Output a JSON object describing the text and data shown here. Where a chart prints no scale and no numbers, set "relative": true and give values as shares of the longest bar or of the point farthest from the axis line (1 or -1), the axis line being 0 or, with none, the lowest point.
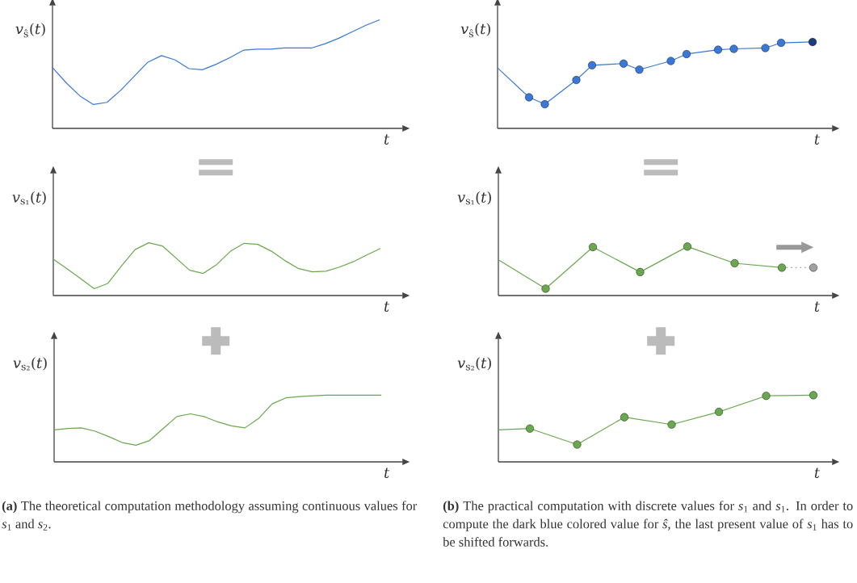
{
  "chart_data": [
    {
      "type": "line",
      "relative": true,
      "ylabel": "*v*$_{ŝ}$(*t*)",
      "xlabel": "*t*",
      "categories": [
        null,
        null,
        null,
        null,
        null,
        null,
        null,
        null,
        null,
        null,
        null,
        null,
        null,
        null,
        null,
        null,
        null,
        null,
        null,
        null,
        null,
        null,
        null,
        null,
        null
      ],
      "series": [
        {
          "color": "#3a78d8",
          "values": [
            0.56,
            0.42,
            0.3,
            0.22,
            0.24,
            0.35,
            0.48,
            0.61,
            0.67,
            0.63,
            0.55,
            0.54,
            0.59,
            0.65,
            0.72,
            0.73,
            0.73,
            0.74,
            0.74,
            0.74,
            0.78,
            0.83,
            0.89,
            0.95,
            1
          ]
        }
      ]
    },
    {
      "type": "line",
      "relative": true,
      "ylabel": "*v*$_{ŝ}$(*t*)",
      "xlabel": "*t*",
      "categories": [
        null,
        null,
        null,
        null,
        null,
        null,
        null,
        null,
        null,
        null,
        null,
        null,
        null,
        null,
        null,
        null,
        null,
        null,
        null,
        null,
        null
      ],
      "series": [
        {
          "color": "#3a78d8",
          "marker": "circle",
          "values": [
            0.7,
            null,
            0.36,
            0.28,
            null,
            0.56,
            0.73,
            null,
            0.75,
            0.68,
            null,
            0.78,
            0.86,
            null,
            0.91,
            0.92,
            null,
            0.93,
            0.99,
            null,
            1
          ],
          "colors": [
            null,
            null,
            "#3a78d8",
            "#3a78d8",
            null,
            "#3a78d8",
            "#3a78d8",
            null,
            "#3a78d8",
            "#3a78d8",
            null,
            "#3a78d8",
            "#3a78d8",
            null,
            "#3a78d8",
            "#3a78d8",
            null,
            "#3a78d8",
            "#3a78d8",
            null,
            "#1a3e7a"
          ]
        }
      ]
    },
    {
      "type": "line",
      "relative": true,
      "ylabel": "*v*$_{s₁}$(*t*)",
      "xlabel": "*t*",
      "categories": [
        null,
        null,
        null,
        null,
        null,
        null,
        null,
        null,
        null,
        null,
        null,
        null,
        null,
        null,
        null,
        null,
        null,
        null,
        null,
        null,
        null,
        null,
        null,
        null,
        null
      ],
      "series": [
        {
          "color": "#6aa84f",
          "values": [
            0.69,
            0.51,
            0.32,
            0.13,
            0.23,
            0.56,
            0.87,
            1,
            0.94,
            0.71,
            0.48,
            0.42,
            0.59,
            0.84,
            0.99,
            0.97,
            0.84,
            0.66,
            0.51,
            0.45,
            0.46,
            0.54,
            0.64,
            0.77,
            0.89
          ]
        }
      ]
    },
    {
      "type": "line",
      "relative": true,
      "ylabel": "*v*$_{s₁}$(*t*)",
      "xlabel": "*t*",
      "categories": [
        null,
        null,
        null,
        null,
        null,
        null,
        null,
        null,
        null,
        null,
        null,
        null,
        null,
        null,
        null,
        null,
        null,
        null,
        null,
        null,
        null
      ],
      "series": [
        {
          "color": "#a0a0a0",
          "line_style": "dotted",
          "marker": "circle",
          "values": [
            null,
            null,
            null,
            null,
            null,
            null,
            null,
            null,
            null,
            null,
            null,
            null,
            null,
            null,
            null,
            null,
            null,
            null,
            0.57,
            null,
            0.57
          ],
          "colors": [
            null,
            null,
            null,
            null,
            null,
            null,
            null,
            null,
            null,
            null,
            null,
            null,
            null,
            null,
            null,
            null,
            null,
            null,
            null,
            null,
            "#a0a0a0"
          ]
        },
        {
          "color": "#6aa84f",
          "marker": "circle",
          "values": [
            0.73,
            null,
            null,
            0.14,
            null,
            null,
            0.99,
            null,
            null,
            0.48,
            null,
            null,
            1,
            null,
            null,
            0.66,
            null,
            null,
            0.57,
            null,
            null
          ],
          "colors": [
            null,
            null,
            null,
            "#6aa84f",
            null,
            null,
            "#6aa84f",
            null,
            null,
            "#6aa84f",
            null,
            null,
            "#6aa84f",
            null,
            null,
            "#6aa84f",
            null,
            null,
            "#6aa84f",
            null,
            null
          ]
        }
      ]
    },
    {
      "type": "line",
      "relative": true,
      "ylabel": "*v*$_{s₂}$(*t*)",
      "xlabel": "*t*",
      "categories": [
        null,
        null,
        null,
        null,
        null,
        null,
        null,
        null,
        null,
        null,
        null,
        null,
        null,
        null,
        null,
        null,
        null,
        null,
        null,
        null,
        null,
        null,
        null,
        null,
        null
      ],
      "series": [
        {
          "color": "#6aa84f",
          "values": [
            0.48,
            0.5,
            0.51,
            0.46,
            0.38,
            0.29,
            0.25,
            0.32,
            0.5,
            0.68,
            0.72,
            0.68,
            0.6,
            0.54,
            0.51,
            0.65,
            0.87,
            0.96,
            0.98,
            0.99,
            1,
            1,
            1,
            1,
            1
          ]
        }
      ],
      "annotations": [
        "**(a)** The theoretical computation methodology assuming continuous values for *s*$_{1}$ and *s*$_{2}$."
      ]
    },
    {
      "type": "line",
      "relative": true,
      "ylabel": "*v*$_{s₂}$(*t*)",
      "xlabel": "*t*",
      "categories": [
        null,
        null,
        null,
        null,
        null,
        null,
        null,
        null,
        null,
        null,
        null,
        null,
        null,
        null,
        null,
        null,
        null,
        null,
        null,
        null,
        null
      ],
      "series": [
        {
          "color": "#6aa84f",
          "marker": "circle",
          "values": [
            0.48,
            null,
            0.5,
            null,
            null,
            0.26,
            null,
            null,
            0.67,
            null,
            null,
            0.56,
            null,
            null,
            0.75,
            null,
            null,
            0.99,
            null,
            null,
            1
          ],
          "colors": [
            null,
            null,
            "#6aa84f",
            null,
            null,
            "#6aa84f",
            null,
            null,
            "#6aa84f",
            null,
            null,
            "#6aa84f",
            null,
            null,
            "#6aa84f",
            null,
            null,
            "#6aa84f",
            null,
            null,
            "#6aa84f"
          ]
        }
      ],
      "annotations": [
        "**(b)** The practical computation with discrete values for *s*$_{1}$ and *s*$_{1}$. In order to compute the dark blue colored value for *ŝ*, the last present value of *s*$_{1}$ has to be shifted forwards."
      ]
    }
  ]
}
